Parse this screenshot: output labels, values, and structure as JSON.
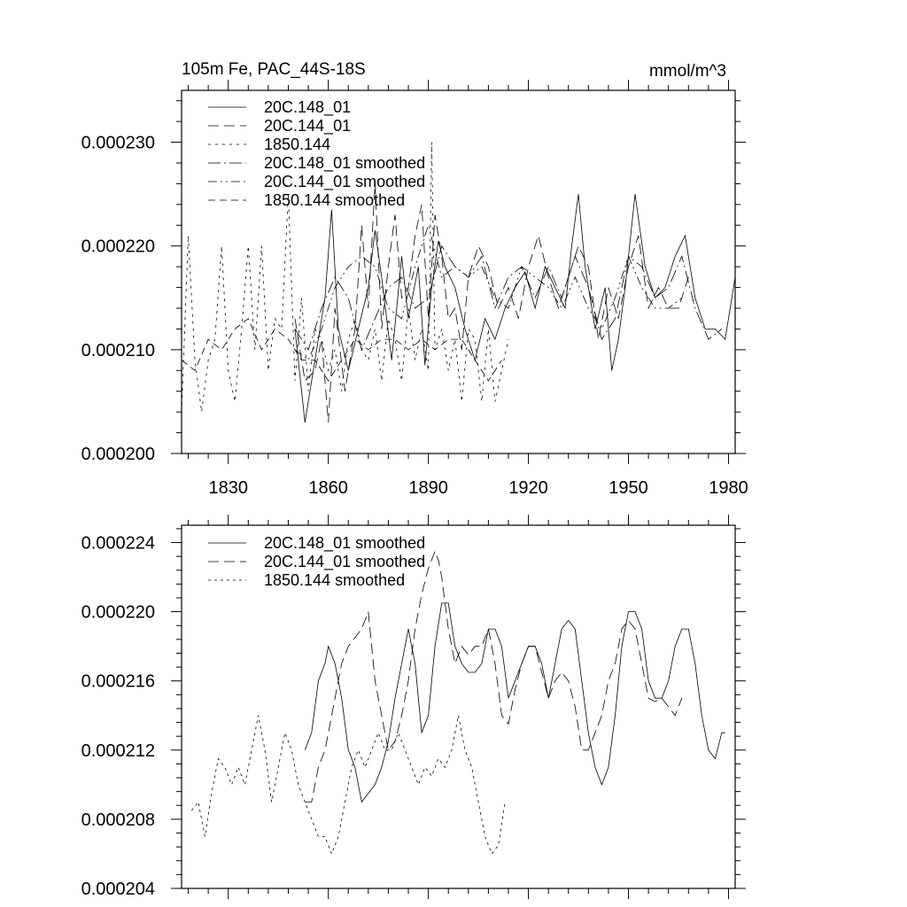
{
  "chart_data": [
    {
      "type": "line",
      "title_left": "105m Fe, PAC_44S-18S",
      "title_right": "mmol/m^3",
      "xlim": [
        1816,
        1982
      ],
      "ylim": [
        0.0002,
        0.000235
      ],
      "x_ticks": [
        1830,
        1860,
        1890,
        1920,
        1950,
        1980
      ],
      "x_tick_labels": [
        "1830",
        "1860",
        "1890",
        "1920",
        "1950",
        "1980"
      ],
      "y_ticks": [
        0.0002,
        0.00021,
        0.00022,
        0.00023
      ],
      "y_tick_labels": [
        "0.000200",
        "0.000210",
        "0.000220",
        "0.000230"
      ],
      "legend_position": "top-left",
      "series": [
        {
          "name": "20C.148_01",
          "dash": "solid",
          "x": [
            1850,
            1853,
            1856,
            1859,
            1861,
            1863,
            1866,
            1869,
            1872,
            1874,
            1876,
            1879,
            1882,
            1884,
            1887,
            1889,
            1891,
            1893,
            1895,
            1898,
            1901,
            1904,
            1907,
            1910,
            1913,
            1916,
            1919,
            1922,
            1925,
            1928,
            1931,
            1933,
            1935,
            1937,
            1940,
            1943,
            1945,
            1947,
            1949,
            1952,
            1955,
            1958,
            1961,
            1964,
            1967,
            1970,
            1973,
            1976,
            1979,
            1982
          ],
          "values": [
            0.000212,
            0.000203,
            0.000209,
            0.000215,
            0.0002235,
            0.000212,
            0.000208,
            0.000212,
            0.000216,
            0.0002215,
            0.000217,
            0.000209,
            0.000219,
            0.000213,
            0.000218,
            0.0002085,
            0.000216,
            0.0002205,
            0.000218,
            0.000216,
            0.000212,
            0.000209,
            0.000213,
            0.000211,
            0.000214,
            0.000216,
            0.0002175,
            0.000214,
            0.000218,
            0.000216,
            0.000214,
            0.00022,
            0.000225,
            0.000218,
            0.000212,
            0.000216,
            0.000208,
            0.000211,
            0.000216,
            0.000225,
            0.000218,
            0.000215,
            0.000216,
            0.000219,
            0.000221,
            0.000215,
            0.000212,
            0.000212,
            0.000211,
            0.000217
          ]
        },
        {
          "name": "20C.144_01",
          "dash": "12 6",
          "x": [
            1850,
            1853,
            1856,
            1858,
            1860,
            1862,
            1865,
            1868,
            1870,
            1872,
            1874,
            1876,
            1878,
            1880,
            1882,
            1884,
            1886,
            1888,
            1890,
            1892,
            1894,
            1896,
            1898,
            1900,
            1902,
            1905,
            1908,
            1911,
            1914,
            1917,
            1920,
            1923,
            1926,
            1929,
            1932,
            1935,
            1938,
            1941,
            1944,
            1947,
            1950,
            1953,
            1956,
            1959,
            1962,
            1965,
            1968
          ],
          "values": [
            0.000213,
            0.000207,
            0.000208,
            0.000211,
            0.000203,
            0.000214,
            0.000206,
            0.000212,
            0.000222,
            0.000214,
            0.000226,
            0.000212,
            0.000218,
            0.000223,
            0.000215,
            0.000216,
            0.000221,
            0.000224,
            0.000213,
            0.000223,
            0.000219,
            0.000213,
            0.000214,
            0.00021,
            0.000217,
            0.00022,
            0.000218,
            0.000214,
            0.000216,
            0.000213,
            0.000218,
            0.000221,
            0.000217,
            0.000214,
            0.000217,
            0.00022,
            0.000218,
            0.000211,
            0.000216,
            0.000213,
            0.000218,
            0.000221,
            0.000214,
            0.000216,
            0.000214,
            0.000214,
            0.000217
          ]
        },
        {
          "name": "1850.144",
          "dash": "3 5",
          "x": [
            1816,
            1818,
            1820,
            1822,
            1824,
            1826,
            1828,
            1830,
            1832,
            1834,
            1836,
            1838,
            1840,
            1842,
            1844,
            1846,
            1848,
            1850,
            1852,
            1854,
            1856,
            1858,
            1860,
            1862,
            1864,
            1866,
            1868,
            1870,
            1872,
            1874,
            1876,
            1878,
            1880,
            1882,
            1884,
            1886,
            1888,
            1890,
            1891,
            1892,
            1894,
            1896,
            1898,
            1900,
            1902,
            1904,
            1906,
            1908,
            1910,
            1912,
            1914
          ],
          "values": [
            0.000204,
            0.000221,
            0.000209,
            0.000204,
            0.000209,
            0.000211,
            0.00022,
            0.000208,
            0.000205,
            0.000212,
            0.00022,
            0.00021,
            0.00022,
            0.000208,
            0.000213,
            0.000212,
            0.000225,
            0.000207,
            0.000215,
            0.000206,
            0.000212,
            0.000211,
            0.000208,
            0.00021,
            0.000206,
            0.000211,
            0.000213,
            0.00021,
            0.000209,
            0.000212,
            0.000207,
            0.000213,
            0.000211,
            0.000207,
            0.000214,
            0.000209,
            0.000212,
            0.000208,
            0.00023,
            0.00021,
            0.000212,
            0.000208,
            0.000211,
            0.000205,
            0.000212,
            0.000211,
            0.000205,
            0.000212,
            0.000205,
            0.000208,
            0.000211
          ]
        },
        {
          "name": "20C.148_01 smoothed",
          "dash": "14 4 2 4",
          "x": [
            1850,
            1854,
            1858,
            1862,
            1866,
            1870,
            1874,
            1878,
            1882,
            1886,
            1890,
            1894,
            1898,
            1902,
            1906,
            1910,
            1914,
            1918,
            1922,
            1926,
            1930,
            1934,
            1938,
            1942,
            1946,
            1950,
            1954,
            1958,
            1962,
            1966,
            1970,
            1974,
            1978
          ],
          "values": [
            0.000212,
            0.00021,
            0.000214,
            0.000217,
            0.000215,
            0.00021,
            0.000213,
            0.000216,
            0.000217,
            0.000214,
            0.000215,
            0.00022,
            0.000218,
            0.000217,
            0.000219,
            0.000214,
            0.000217,
            0.000218,
            0.000215,
            0.000218,
            0.000215,
            0.000219,
            0.000216,
            0.000211,
            0.000213,
            0.000219,
            0.000218,
            0.000215,
            0.000216,
            0.000219,
            0.000214,
            0.000211,
            0.000212
          ]
        },
        {
          "name": "20C.144_01 smoothed",
          "dash": "10 4 2 4 2 4",
          "x": [
            1850,
            1854,
            1858,
            1862,
            1866,
            1870,
            1874,
            1878,
            1882,
            1886,
            1890,
            1894,
            1898,
            1902,
            1906,
            1910,
            1914,
            1918,
            1922,
            1926,
            1930,
            1934,
            1938,
            1942,
            1946,
            1950,
            1954,
            1958,
            1962,
            1966
          ],
          "values": [
            0.00021,
            0.000209,
            0.000212,
            0.000216,
            0.000218,
            0.000219,
            0.000218,
            0.000214,
            0.000213,
            0.000218,
            0.000222,
            0.000217,
            0.000218,
            0.000217,
            0.000218,
            0.000215,
            0.000214,
            0.000218,
            0.000217,
            0.000216,
            0.000214,
            0.000217,
            0.000214,
            0.000212,
            0.000215,
            0.000219,
            0.000216,
            0.000214,
            0.000214,
            0.000215
          ]
        },
        {
          "name": "1850.144 smoothed",
          "dash": "8 5",
          "x": [
            1816,
            1820,
            1824,
            1828,
            1832,
            1836,
            1840,
            1844,
            1848,
            1852,
            1856,
            1860,
            1864,
            1868,
            1872,
            1876,
            1880,
            1884,
            1888,
            1892,
            1896,
            1900,
            1904,
            1908,
            1912
          ],
          "values": [
            0.000209,
            0.000208,
            0.000211,
            0.00021,
            0.000212,
            0.000213,
            0.00021,
            0.000212,
            0.000211,
            0.000209,
            0.000209,
            0.000207,
            0.000209,
            0.000211,
            0.00021,
            0.000211,
            0.000211,
            0.00021,
            0.000211,
            0.00021,
            0.000211,
            0.000211,
            0.000209,
            0.000207,
            0.000209
          ]
        }
      ]
    },
    {
      "type": "line",
      "xlim": [
        1816,
        1982
      ],
      "ylim": [
        0.000204,
        0.000225
      ],
      "x_ticks": [
        1830,
        1860,
        1890,
        1920,
        1950,
        1980
      ],
      "y_ticks": [
        0.000204,
        0.000208,
        0.000212,
        0.000216,
        0.00022,
        0.000224
      ],
      "y_tick_labels": [
        "0.000204",
        "0.000208",
        "0.000212",
        "0.000216",
        "0.000220",
        "0.000224"
      ],
      "legend_position": "top-left",
      "series": [
        {
          "name": "20C.148_01 smoothed",
          "dash": "solid",
          "x": [
            1853,
            1855,
            1857,
            1859,
            1860,
            1862,
            1864,
            1866,
            1868,
            1870,
            1872,
            1874,
            1876,
            1878,
            1880,
            1882,
            1884,
            1886,
            1888,
            1890,
            1892,
            1894,
            1896,
            1898,
            1900,
            1902,
            1904,
            1906,
            1908,
            1910,
            1912,
            1914,
            1916,
            1918,
            1920,
            1922,
            1924,
            1926,
            1928,
            1930,
            1932,
            1934,
            1936,
            1938,
            1940,
            1942,
            1944,
            1946,
            1948,
            1950,
            1952,
            1954,
            1956,
            1958,
            1960,
            1962,
            1964,
            1966,
            1968,
            1970,
            1972,
            1974,
            1976,
            1978,
            1979
          ],
          "values": [
            0.000212,
            0.000213,
            0.000216,
            0.000217,
            0.000218,
            0.000217,
            0.000215,
            0.000212,
            0.000211,
            0.000209,
            0.0002095,
            0.00021,
            0.000211,
            0.0002125,
            0.000215,
            0.000217,
            0.000219,
            0.000217,
            0.000213,
            0.000214,
            0.000218,
            0.0002205,
            0.0002205,
            0.000218,
            0.000217,
            0.0002165,
            0.0002165,
            0.000217,
            0.000219,
            0.000219,
            0.000218,
            0.000215,
            0.000216,
            0.000217,
            0.000218,
            0.000218,
            0.000217,
            0.000215,
            0.000217,
            0.000219,
            0.0002195,
            0.000219,
            0.000216,
            0.000213,
            0.000211,
            0.00021,
            0.000211,
            0.000214,
            0.000218,
            0.00022,
            0.00022,
            0.000219,
            0.000216,
            0.000215,
            0.000215,
            0.000216,
            0.000218,
            0.000219,
            0.000219,
            0.000217,
            0.000214,
            0.000212,
            0.0002115,
            0.000213,
            0.000213
          ]
        },
        {
          "name": "20C.144_01 smoothed",
          "dash": "12 6",
          "x": [
            1853,
            1855,
            1857,
            1859,
            1860,
            1862,
            1864,
            1866,
            1868,
            1870,
            1872,
            1874,
            1876,
            1878,
            1880,
            1882,
            1884,
            1886,
            1888,
            1890,
            1891,
            1892,
            1893,
            1894,
            1896,
            1898,
            1900,
            1902,
            1904,
            1906,
            1908,
            1910,
            1912,
            1914,
            1916,
            1918,
            1920,
            1922,
            1924,
            1926,
            1928,
            1930,
            1932,
            1934,
            1936,
            1938,
            1940,
            1942,
            1944,
            1946,
            1948,
            1950,
            1952,
            1954,
            1956,
            1958,
            1960,
            1962,
            1964,
            1966
          ],
          "values": [
            0.000209,
            0.000209,
            0.000211,
            0.000212,
            0.000213,
            0.000215,
            0.000217,
            0.000218,
            0.0002185,
            0.000219,
            0.00022,
            0.000216,
            0.000214,
            0.000212,
            0.0002125,
            0.000214,
            0.000216,
            0.000219,
            0.000221,
            0.0002225,
            0.000223,
            0.0002235,
            0.000223,
            0.000222,
            0.000219,
            0.000217,
            0.000218,
            0.0002175,
            0.000218,
            0.000218,
            0.000219,
            0.000217,
            0.000214,
            0.0002135,
            0.0002155,
            0.000217,
            0.000218,
            0.000218,
            0.0002165,
            0.000215,
            0.000216,
            0.0002165,
            0.000216,
            0.0002145,
            0.000212,
            0.000212,
            0.000213,
            0.000214,
            0.000216,
            0.000217,
            0.000219,
            0.0002195,
            0.000219,
            0.000217,
            0.000215,
            0.0002148,
            0.000215,
            0.0002145,
            0.000214,
            0.000215
          ]
        },
        {
          "name": "1850.144 smoothed",
          "dash": "3 4",
          "x": [
            1819,
            1821,
            1823,
            1825,
            1827,
            1829,
            1831,
            1833,
            1835,
            1837,
            1839,
            1841,
            1843,
            1845,
            1847,
            1849,
            1851,
            1853,
            1855,
            1857,
            1859,
            1861,
            1863,
            1865,
            1867,
            1869,
            1871,
            1873,
            1875,
            1877,
            1879,
            1881,
            1883,
            1885,
            1887,
            1889,
            1891,
            1893,
            1895,
            1897,
            1899,
            1901,
            1903,
            1905,
            1907,
            1909,
            1911,
            1913
          ],
          "values": [
            0.0002085,
            0.000209,
            0.000207,
            0.0002095,
            0.0002115,
            0.000211,
            0.00021,
            0.000211,
            0.00021,
            0.000212,
            0.000214,
            0.000212,
            0.000209,
            0.000211,
            0.000213,
            0.000212,
            0.00021,
            0.000209,
            0.000208,
            0.000207,
            0.000207,
            0.000206,
            0.000207,
            0.000209,
            0.000211,
            0.000212,
            0.000211,
            0.000212,
            0.000213,
            0.000212,
            0.000212,
            0.000213,
            0.000212,
            0.000211,
            0.00021,
            0.000211,
            0.0002105,
            0.0002115,
            0.000211,
            0.000212,
            0.000214,
            0.000212,
            0.000211,
            0.000209,
            0.000207,
            0.000206,
            0.0002065,
            0.000209
          ]
        }
      ]
    }
  ]
}
